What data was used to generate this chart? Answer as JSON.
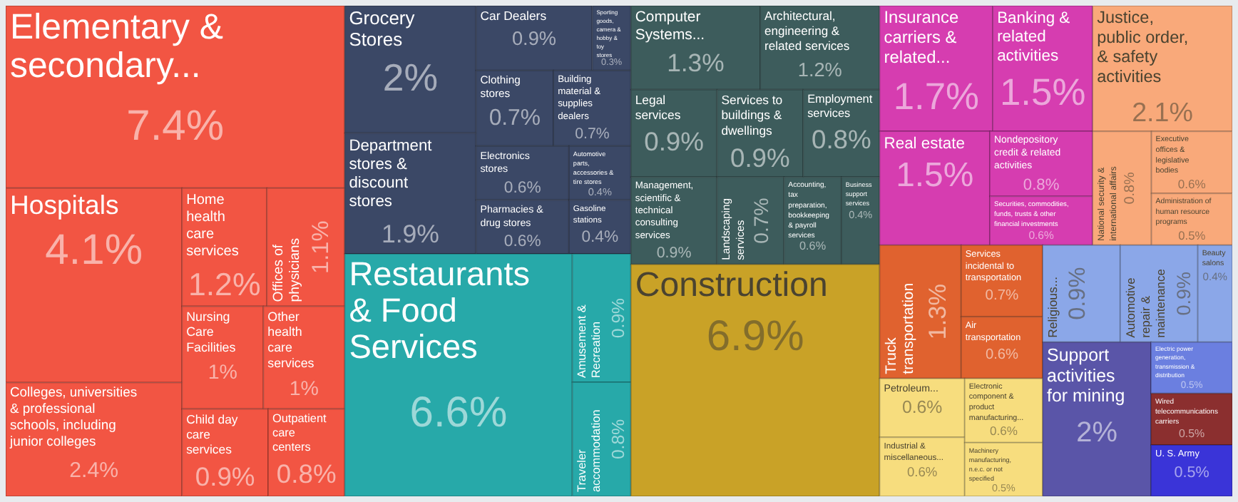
{
  "chart_data": {
    "type": "other",
    "categories": [
      "Elementary & secondary...",
      "Hospitals",
      "Colleges, universities & professional schools, including junior colleges",
      "Home health care services",
      "Offices of physicians",
      "Nursing Care Facilities",
      "Other health care services",
      "Child day care services",
      "Outpatient care centers",
      "Computer Systems...",
      "Architectural, engineering & related services",
      "Legal services",
      "Management, scientific & technical consulting services",
      "Services to buildings & dwellings",
      "Employment services",
      "Landscaping services",
      "Accounting, tax preparation, bookkeeping & payroll services",
      "Business support services",
      "Restaurants & Food Services",
      "Amusement & Recreation",
      "Traveler accommodation",
      "Grocery Stores",
      "Department stores & discount stores",
      "Car Dealers",
      "Sporting goods, camera & hobby & toy stores",
      "Clothing stores",
      "Building material & supplies dealers",
      "Electronics stores",
      "Pharmacies & drug stores",
      "Automotive parts, accessories & tire stores",
      "Gasoline stations",
      "Construction",
      "Insurance carriers & related...",
      "Banking & related activities",
      "Real estate",
      "Nondepository credit & related activities",
      "Securities, commodities, funds, trusts & other financial investments",
      "Justice, public order, & safety activities",
      "National security & international affairs",
      "Executive offices & legislative bodies",
      "Administration of human resource programs",
      "Petroleum...",
      "Industrial & miscellaneous...",
      "Electronic component & product manufacturing...",
      "Machinery manufacturing, n.e.c. or not specified",
      "Truck transportation",
      "Services incidental to transportation",
      "Air transportation",
      "Support activities for mining",
      "Religious...",
      "Automotive repair & maintenance",
      "Beauty salons",
      "Electric power generation, transmission & distribution",
      "Wired telecommunications carriers",
      "U. S. Army"
    ],
    "values": [
      7.4,
      4.1,
      2.4,
      1.2,
      1.1,
      1,
      1,
      0.9,
      0.8,
      1.3,
      1.2,
      0.9,
      0.9,
      0.9,
      0.8,
      0.7,
      0.6,
      0.4,
      6.6,
      0.9,
      0.8,
      2,
      1.9,
      0.9,
      0.3,
      0.7,
      0.7,
      0.6,
      0.6,
      0.4,
      0.4,
      6.9,
      1.7,
      1.5,
      1.5,
      0.8,
      0.6,
      2.1,
      0.8,
      0.6,
      0.5,
      0.6,
      0.6,
      0.6,
      0.5,
      1.3,
      0.7,
      0.6,
      2,
      0.9,
      0.9,
      0.4,
      0.5,
      0.5,
      0.5
    ],
    "value_labels": [
      "7.4%",
      "4.1%",
      "2.4%",
      "1.2%",
      "1.1%",
      "1%",
      "1%",
      "0.9%",
      "0.8%",
      "1.3%",
      "1.2%",
      "0.9%",
      "0.9%",
      "0.9%",
      "0.8%",
      "0.7%",
      "0.6%",
      "0.4%",
      "6.6%",
      "0.9%",
      "0.8%",
      "2%",
      "1.9%",
      "0.9%",
      "0.3%",
      "0.7%",
      "0.7%",
      "0.6%",
      "0.6%",
      "0.4%",
      "0.4%",
      "6.9%",
      "1.7%",
      "1.5%",
      "1.5%",
      "0.8%",
      "0.6%",
      "2.1%",
      "0.8%",
      "0.6%",
      "0.5%",
      "0.6%",
      "0.6%",
      "0.6%",
      "0.5%",
      "1.3%",
      "0.7%",
      "0.6%",
      "2%",
      "0.9%",
      "0.9%",
      "0.4%",
      "0.5%",
      "0.5%",
      "0.5%"
    ],
    "colors": [
      "#f25543",
      "#f25543",
      "#f25543",
      "#f25543",
      "#f25543",
      "#f25543",
      "#f25543",
      "#f25543",
      "#f25543",
      "#3d5c5c",
      "#3d5c5c",
      "#3d5c5c",
      "#3d5c5c",
      "#3d5c5c",
      "#3d5c5c",
      "#3d5c5c",
      "#3d5c5c",
      "#3d5c5c",
      "#27a9a9",
      "#27a9a9",
      "#27a9a9",
      "#3b4866",
      "#3b4866",
      "#3b4866",
      "#3b4866",
      "#3b4866",
      "#3b4866",
      "#3b4866",
      "#3b4866",
      "#3b4866",
      "#3b4866",
      "#c9a227",
      "#d63db0",
      "#d63db0",
      "#d63db0",
      "#d63db0",
      "#d63db0",
      "#f9a97a",
      "#f9a97a",
      "#f9a97a",
      "#f9a97a",
      "#f7dd7e",
      "#f7dd7e",
      "#f7dd7e",
      "#f7dd7e",
      "#e0622f",
      "#e0622f",
      "#e0622f",
      "#5a55a8",
      "#8ba7e8",
      "#8ba7e8",
      "#8ba7e8",
      "#6b7fe0",
      "#8b2f2f",
      "#3a34d8"
    ]
  }
}
